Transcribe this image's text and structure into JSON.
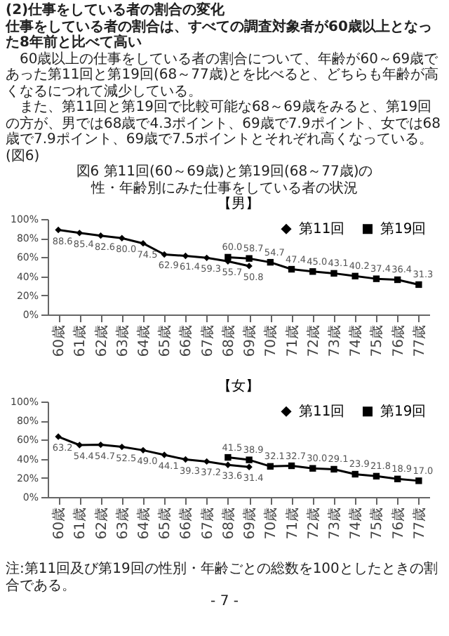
{
  "chart_data": [
    {
      "type": "line",
      "title": "【男】",
      "annotations": [
        "(2)仕事をしている者の割合の変化",
        "仕事をしている者の割合は、すべての調査対象者が60歳以上となった8年前と比べて高い",
        "60歳以上の仕事をしている者の割合について、年齢が60～69歳であった第11回と第19回(68～77歳)とを比べると、どちらも年齢が高くなるにつれて減少している。",
        "また、第11回と第19回で比較可能な68～69歳をみると、第19回の方が、男では68歳で4.3ポイント、69歳で7.9ポイント、女では68歳で7.9ポイント、69歳で7.5ポイントとそれぞれ高くなっている。(図6)",
        "図6 第11回(60～69歳)と第19回(68～77歳)の",
        "性・年齢別にみた仕事をしている者の状況"
      ],
      "categories": [
        "60歳",
        "61歳",
        "62歳",
        "63歳",
        "64歳",
        "65歳",
        "66歳",
        "67歳",
        "68歳",
        "69歳",
        "70歳",
        "71歳",
        "72歳",
        "73歳",
        "74歳",
        "75歳",
        "76歳",
        "77歳"
      ],
      "series": [
        {
          "name": "第11回",
          "color": "#000000",
          "marker": "diamond",
          "values": [
            88.6,
            85.4,
            82.6,
            80.0,
            74.5,
            62.9,
            61.4,
            59.3,
            55.7,
            50.8,
            null,
            null,
            null,
            null,
            null,
            null,
            null,
            null
          ],
          "value_labels": [
            "88.6",
            "85.4",
            "82.6",
            "80.0",
            "74.5",
            "62.9",
            "61.4",
            "59.3",
            "55.7",
            "50.8",
            null,
            null,
            null,
            null,
            null,
            null,
            null,
            null
          ]
        },
        {
          "name": "第19回",
          "color": "#000000",
          "marker": "square",
          "values": [
            null,
            null,
            null,
            null,
            null,
            null,
            null,
            null,
            60.0,
            58.7,
            54.7,
            47.4,
            45.0,
            43.1,
            40.2,
            37.4,
            36.4,
            31.3
          ],
          "value_labels": [
            null,
            null,
            null,
            null,
            null,
            null,
            null,
            null,
            "60.0",
            "58.7",
            "54.7",
            "47.4",
            "45.0",
            "43.1",
            "40.2",
            "37.4",
            "36.4",
            "31.3"
          ]
        }
      ],
      "ylim": [
        0,
        100
      ],
      "yticks": [
        {
          "value": 0,
          "label": "0%"
        },
        {
          "value": 20,
          "label": "20%"
        },
        {
          "value": 40,
          "label": "40%"
        },
        {
          "value": 60,
          "label": "60%"
        },
        {
          "value": 80,
          "label": "80%"
        },
        {
          "value": 100,
          "label": "100%"
        }
      ],
      "legend": "top right"
    },
    {
      "type": "line",
      "title": "【女】",
      "annotations": [
        "注:第11回及び第19回の性別・年齢ごとの総数を100としたときの割合である。",
        "- 7 -"
      ],
      "categories": [
        "60歳",
        "61歳",
        "62歳",
        "63歳",
        "64歳",
        "65歳",
        "66歳",
        "67歳",
        "68歳",
        "69歳",
        "70歳",
        "71歳",
        "72歳",
        "73歳",
        "74歳",
        "75歳",
        "76歳",
        "77歳"
      ],
      "series": [
        {
          "name": "第11回",
          "color": "#000000",
          "marker": "diamond",
          "values": [
            63.2,
            54.4,
            54.7,
            52.5,
            49.0,
            44.1,
            39.3,
            37.2,
            33.6,
            31.4,
            null,
            null,
            null,
            null,
            null,
            null,
            null,
            null
          ],
          "value_labels": [
            "63.2",
            "54.4",
            "54.7",
            "52.5",
            "49.0",
            "44.1",
            "39.3",
            "37.2",
            "33.6",
            "31.4",
            null,
            null,
            null,
            null,
            null,
            null,
            null,
            null
          ]
        },
        {
          "name": "第19回",
          "color": "#000000",
          "marker": "square",
          "values": [
            null,
            null,
            null,
            null,
            null,
            null,
            null,
            null,
            41.5,
            38.9,
            32.1,
            32.7,
            30.0,
            29.1,
            23.9,
            21.8,
            18.9,
            17.0
          ],
          "value_labels": [
            null,
            null,
            null,
            null,
            null,
            null,
            null,
            null,
            "41.5",
            "38.9",
            "32.1",
            "32.7",
            "30.0",
            "29.1",
            "23.9",
            "21.8",
            "18.9",
            "17.0"
          ]
        }
      ],
      "ylim": [
        0,
        100
      ],
      "yticks": [
        {
          "value": 0,
          "label": "0%"
        },
        {
          "value": 20,
          "label": "20%"
        },
        {
          "value": 40,
          "label": "40%"
        },
        {
          "value": 60,
          "label": "60%"
        },
        {
          "value": 80,
          "label": "80%"
        },
        {
          "value": 100,
          "label": "100%"
        }
      ],
      "legend": "top right"
    }
  ]
}
